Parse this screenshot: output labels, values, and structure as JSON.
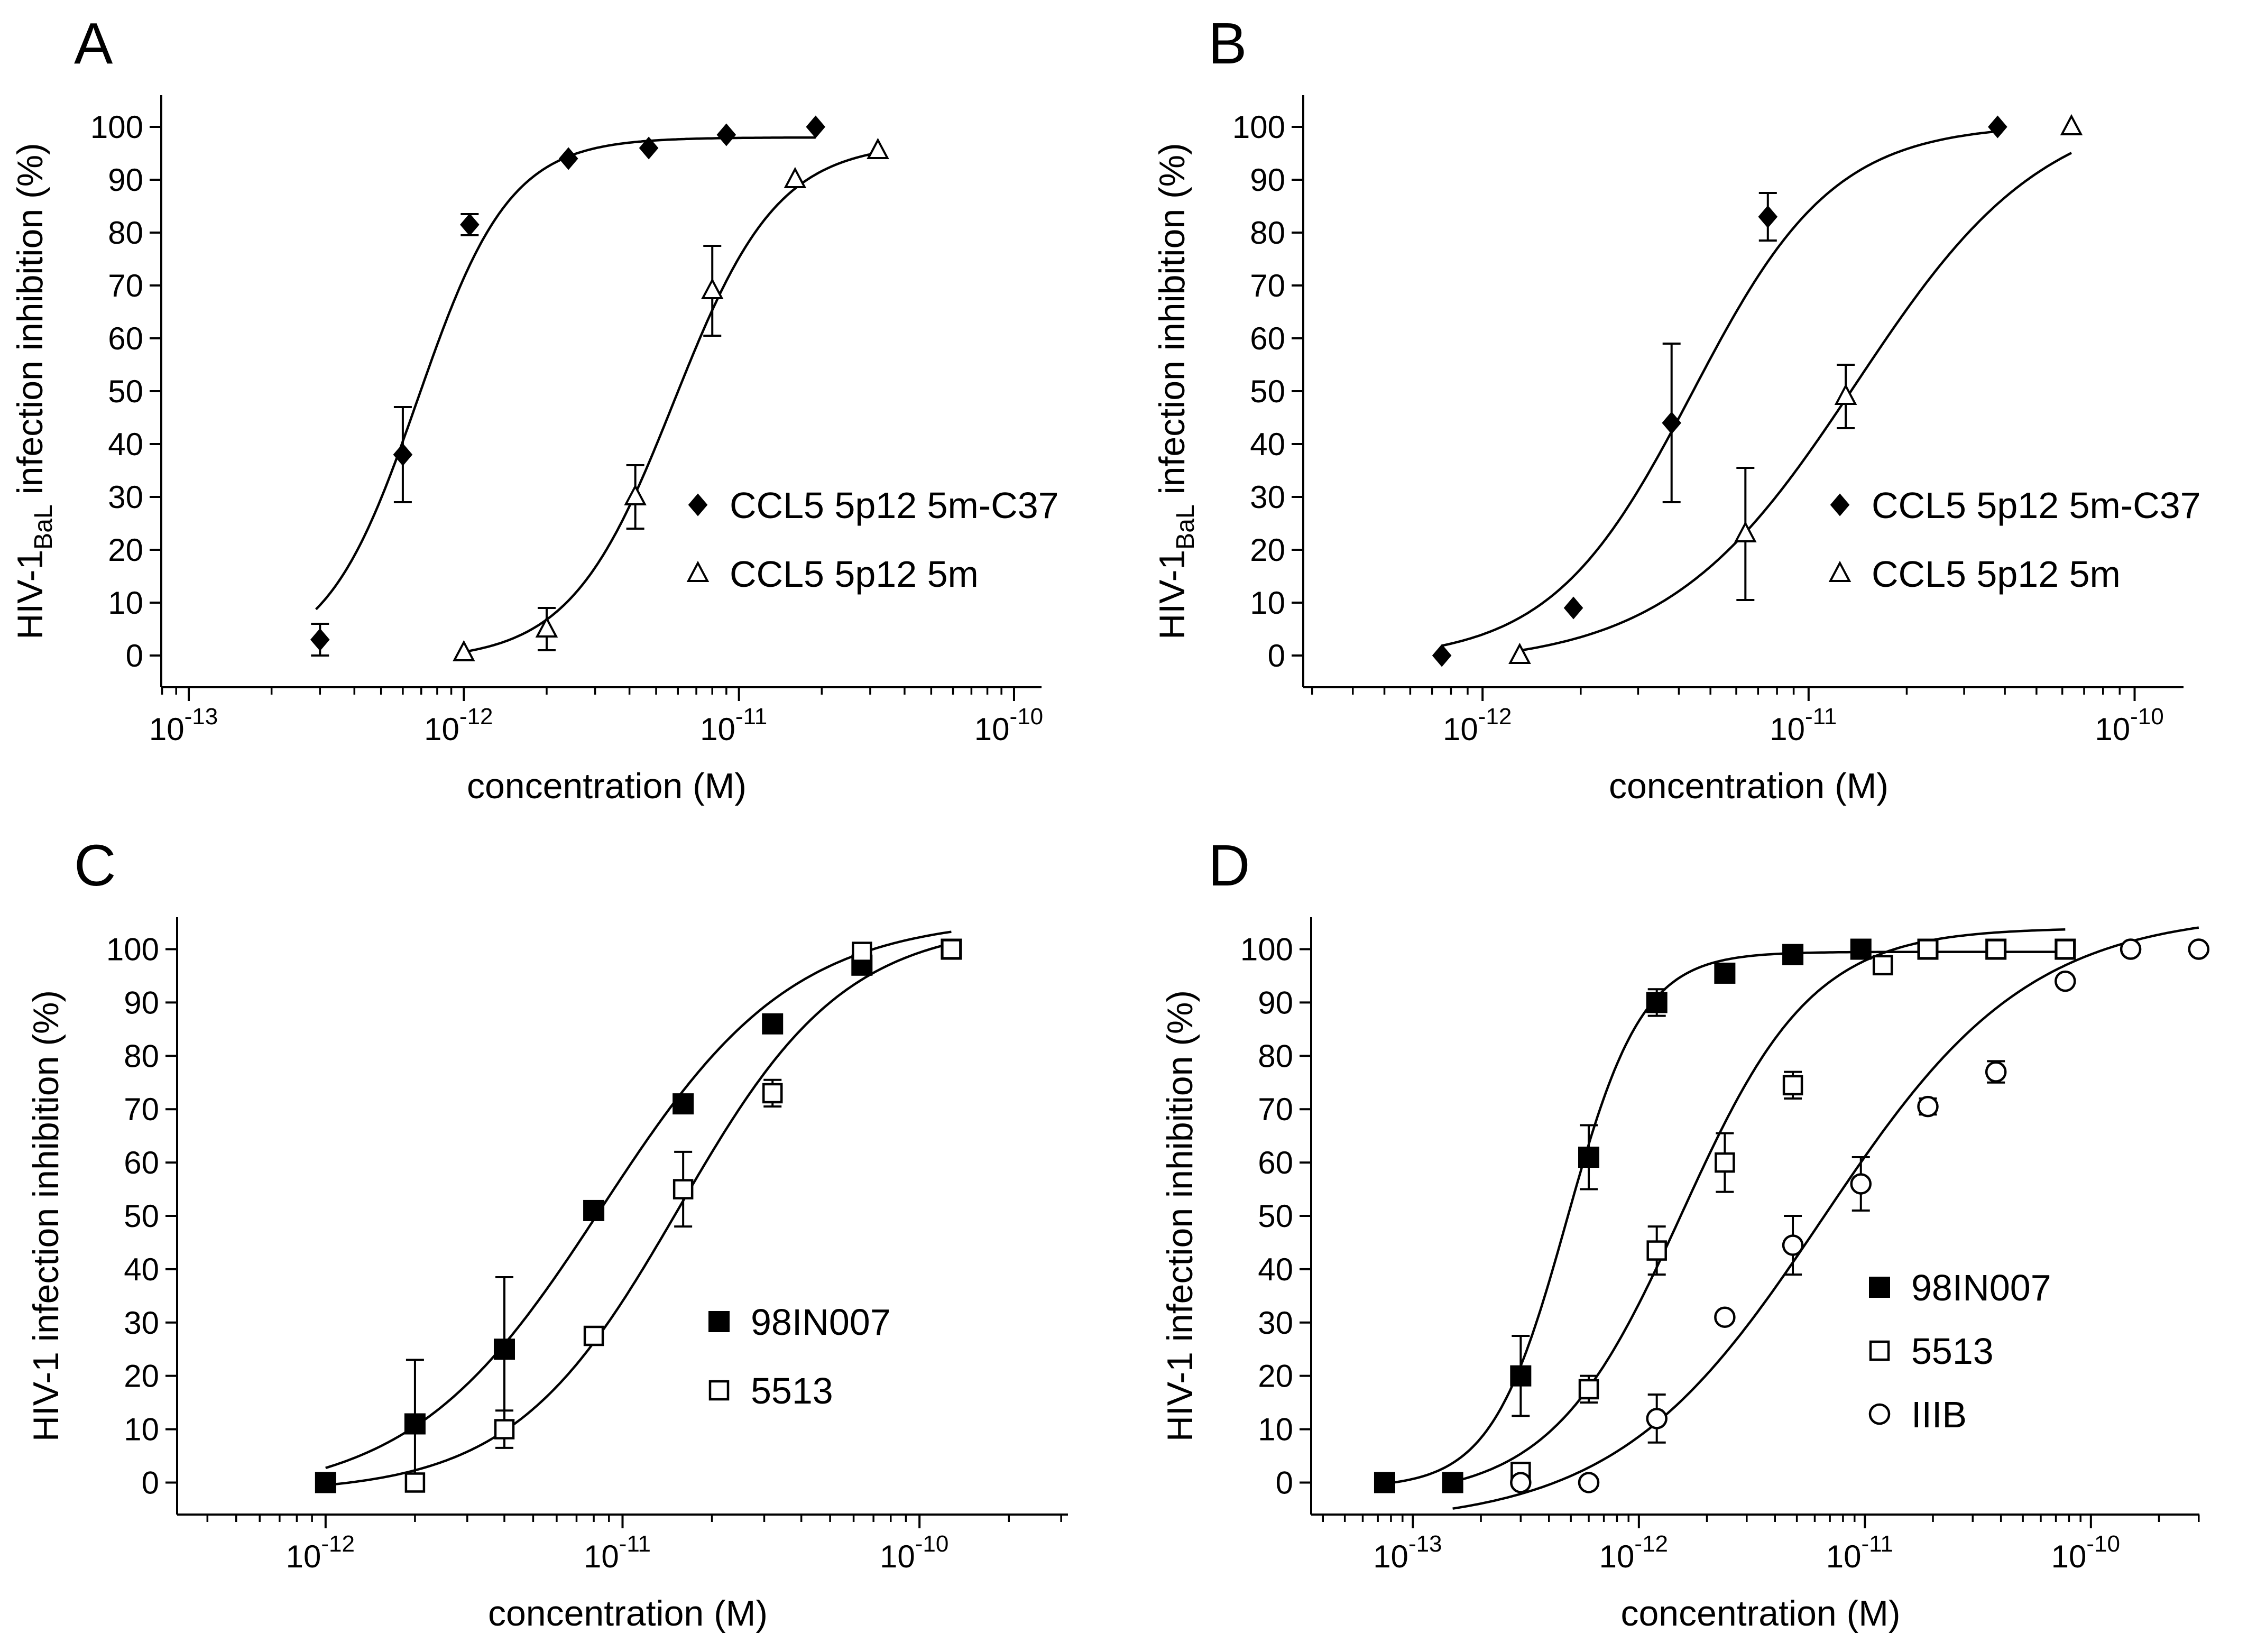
{
  "figure": {
    "background": "#ffffff",
    "ink": "#000000"
  },
  "chart_data": [
    {
      "panel": "A",
      "type": "scatter",
      "title": "",
      "xlabel": "concentration (M)",
      "ylabel": {
        "main": "HIV-1",
        "sub": "BaL",
        "rest": " infection inhibition (%)"
      },
      "xscale": "log",
      "xlim_exp": [
        -13.1,
        -9.9
      ],
      "xticks": [
        {
          "exp": -13,
          "base": "10",
          "sup": "-13"
        },
        {
          "exp": -12,
          "base": "10",
          "sup": "-12"
        },
        {
          "exp": -11,
          "base": "10",
          "sup": "-11"
        },
        {
          "exp": -10,
          "base": "10",
          "sup": "-10"
        }
      ],
      "ylim": [
        -6,
        106
      ],
      "yticks": [
        "0",
        "10",
        "20",
        "30",
        "40",
        "50",
        "60",
        "70",
        "80",
        "90",
        "100"
      ],
      "legend_position": "center-right",
      "series": [
        {
          "name": "CCL5 5p12 5m-C37",
          "marker": "diamond-filled",
          "x": [
            3e-13,
            6e-13,
            1.05e-12,
            2.4e-12,
            4.7e-12,
            9e-12,
            1.9e-11
          ],
          "y": [
            3,
            38,
            81.5,
            94,
            96,
            98.5,
            100
          ],
          "err": [
            3,
            9,
            2,
            0,
            0,
            0,
            0
          ],
          "fit": {
            "bottom": -1,
            "top": 98,
            "ec50": 6.8e-13,
            "hill": 2.6,
            "x_from": 2.9e-13,
            "x_to": 1.9e-11
          }
        },
        {
          "name": "CCL5 5p12 5m",
          "marker": "triangle-open",
          "x": [
            1e-12,
            2e-12,
            4.2e-12,
            8e-12,
            1.6e-11,
            3.2e-11
          ],
          "y": [
            0.5,
            5,
            30,
            69,
            90,
            95.5
          ],
          "err": [
            0,
            4,
            6,
            8.5,
            0,
            0
          ],
          "fit": {
            "bottom": -1,
            "top": 97,
            "ec50": 5.8e-12,
            "hill": 2.3,
            "x_from": 1e-12,
            "x_to": 3.2e-11
          }
        }
      ]
    },
    {
      "panel": "B",
      "type": "scatter",
      "title": "",
      "xlabel": "concentration (M)",
      "ylabel": {
        "main": "HIV-1",
        "sub": "BaL",
        "rest": " infection inhibition (%)"
      },
      "xscale": "log",
      "xlim_exp": [
        -12.55,
        -9.85
      ],
      "xticks": [
        {
          "exp": -12,
          "base": "10",
          "sup": "-12"
        },
        {
          "exp": -11,
          "base": "10",
          "sup": "-11"
        },
        {
          "exp": -10,
          "base": "10",
          "sup": "-10"
        }
      ],
      "ylim": [
        -6,
        106
      ],
      "yticks": [
        "0",
        "10",
        "20",
        "30",
        "40",
        "50",
        "60",
        "70",
        "80",
        "90",
        "100"
      ],
      "legend_position": "center-right",
      "series": [
        {
          "name": "CCL5 5p12 5m-C37",
          "marker": "diamond-filled",
          "x": [
            7.5e-13,
            1.9e-12,
            3.8e-12,
            7.5e-12,
            3.8e-11
          ],
          "y": [
            0,
            9,
            44,
            83,
            100
          ],
          "err": [
            0,
            0,
            15,
            4.5,
            0
          ],
          "fit": {
            "bottom": -1,
            "top": 100.5,
            "ec50": 4.4e-12,
            "hill": 2.0,
            "x_from": 7.5e-13,
            "x_to": 3.8e-11
          }
        },
        {
          "name": "CCL5 5p12 5m",
          "marker": "triangle-open",
          "x": [
            1.3e-12,
            6.4e-12,
            1.3e-11,
            6.4e-11
          ],
          "y": [
            0,
            23,
            49,
            100
          ],
          "err": [
            0,
            12.5,
            6,
            0
          ],
          "fit": {
            "bottom": -2,
            "top": 105,
            "ec50": 1.4e-11,
            "hill": 1.5,
            "x_from": 1.3e-12,
            "x_to": 6.4e-11
          }
        }
      ]
    },
    {
      "panel": "C",
      "type": "scatter",
      "title": "",
      "xlabel": "concentration (M)",
      "ylabel": {
        "main": "HIV-1 infection inhibition (%)",
        "sub": "",
        "rest": ""
      },
      "xscale": "log",
      "xlim_exp": [
        -12.5,
        -9.5
      ],
      "xticks": [
        {
          "exp": -12,
          "base": "10",
          "sup": "-12"
        },
        {
          "exp": -11,
          "base": "10",
          "sup": "-11"
        },
        {
          "exp": -10,
          "base": "10",
          "sup": "-10"
        }
      ],
      "ylim": [
        -6,
        106
      ],
      "yticks": [
        "0",
        "10",
        "20",
        "30",
        "40",
        "50",
        "60",
        "70",
        "80",
        "90",
        "100"
      ],
      "legend_position": "center-right",
      "series": [
        {
          "name": "98IN007",
          "marker": "square-filled",
          "x": [
            1e-12,
            2e-12,
            4e-12,
            8e-12,
            1.6e-11,
            3.2e-11,
            6.4e-11,
            1.28e-10
          ],
          "y": [
            0,
            11,
            25,
            51,
            71,
            86,
            97,
            100
          ],
          "err": [
            0,
            12,
            13.5,
            0,
            0,
            0,
            0,
            0
          ],
          "fit": {
            "bottom": -3,
            "top": 106,
            "ec50": 8.5e-12,
            "hill": 1.35,
            "x_from": 1e-12,
            "x_to": 1.28e-10
          }
        },
        {
          "name": "5513",
          "marker": "square-open",
          "x": [
            2e-12,
            4e-12,
            8e-12,
            1.6e-11,
            3.2e-11,
            6.4e-11,
            1.28e-10
          ],
          "y": [
            0,
            10,
            27.5,
            55,
            73,
            99.5,
            100
          ],
          "err": [
            0,
            3.5,
            0,
            7,
            2.5,
            0,
            0
          ],
          "fit": {
            "bottom": -2,
            "top": 105,
            "ec50": 1.55e-11,
            "hill": 1.55,
            "x_from": 1e-12,
            "x_to": 1.28e-10
          }
        }
      ]
    },
    {
      "panel": "D",
      "type": "scatter",
      "title": "",
      "xlabel": "concentration (M)",
      "ylabel": {
        "main": "HIV-1 infection inhibition (%)",
        "sub": "",
        "rest": ""
      },
      "xscale": "log",
      "xlim_exp": [
        -13.45,
        -9.52
      ],
      "xticks": [
        {
          "exp": -13,
          "base": "10",
          "sup": "-13"
        },
        {
          "exp": -12,
          "base": "10",
          "sup": "-12"
        },
        {
          "exp": -11,
          "base": "10",
          "sup": "-11"
        },
        {
          "exp": -10,
          "base": "10",
          "sup": "-10"
        }
      ],
      "ylim": [
        -6,
        106
      ],
      "yticks": [
        "0",
        "10",
        "20",
        "30",
        "40",
        "50",
        "60",
        "70",
        "80",
        "90",
        "100"
      ],
      "legend_position": "center-right",
      "series": [
        {
          "name": "98IN007",
          "marker": "square-filled",
          "x": [
            7.5e-14,
            1.5e-13,
            3e-13,
            6e-13,
            1.2e-12,
            2.4e-12,
            4.8e-12,
            9.6e-12,
            1.9e-11,
            3.8e-11,
            7.7e-11
          ],
          "y": [
            0,
            0,
            20,
            61,
            90,
            95.5,
            99,
            100,
            100,
            100,
            100
          ],
          "err": [
            0,
            0,
            7.5,
            6,
            2.5,
            0,
            0,
            0,
            0,
            0,
            0
          ],
          "fit": {
            "bottom": -1,
            "top": 99.5,
            "ec50": 4.8e-13,
            "hill": 2.6,
            "x_from": 7.5e-14,
            "x_to": 7.7e-11
          }
        },
        {
          "name": "5513",
          "marker": "square-open",
          "x": [
            3e-13,
            6e-13,
            1.2e-12,
            2.4e-12,
            4.8e-12,
            1.2e-11,
            1.9e-11,
            3.8e-11,
            7.7e-11
          ],
          "y": [
            2,
            17.5,
            43.5,
            60,
            74.5,
            97,
            100,
            100,
            100
          ],
          "err": [
            0,
            2.5,
            4.5,
            5.5,
            2.5,
            0,
            0,
            0,
            0
          ],
          "fit": {
            "bottom": -3,
            "top": 104,
            "ec50": 1.55e-12,
            "hill": 1.5,
            "x_from": 1.5e-13,
            "x_to": 7.7e-11
          }
        },
        {
          "name": "IIIB",
          "marker": "circle-open",
          "x": [
            3e-13,
            6e-13,
            1.2e-12,
            2.4e-12,
            4.8e-12,
            9.6e-12,
            1.9e-11,
            3.8e-11,
            7.7e-11,
            1.5e-10,
            3e-10
          ],
          "y": [
            0,
            0,
            12,
            31,
            44.5,
            56,
            70.5,
            77,
            94,
            100,
            100
          ],
          "err": [
            0,
            0,
            4.5,
            0,
            5.5,
            5,
            1.5,
            2,
            0,
            0,
            0
          ],
          "fit": {
            "bottom": -8,
            "top": 107,
            "ec50": 6.5e-12,
            "hill": 0.95,
            "x_from": 1.5e-13,
            "x_to": 3e-10
          }
        }
      ]
    }
  ]
}
